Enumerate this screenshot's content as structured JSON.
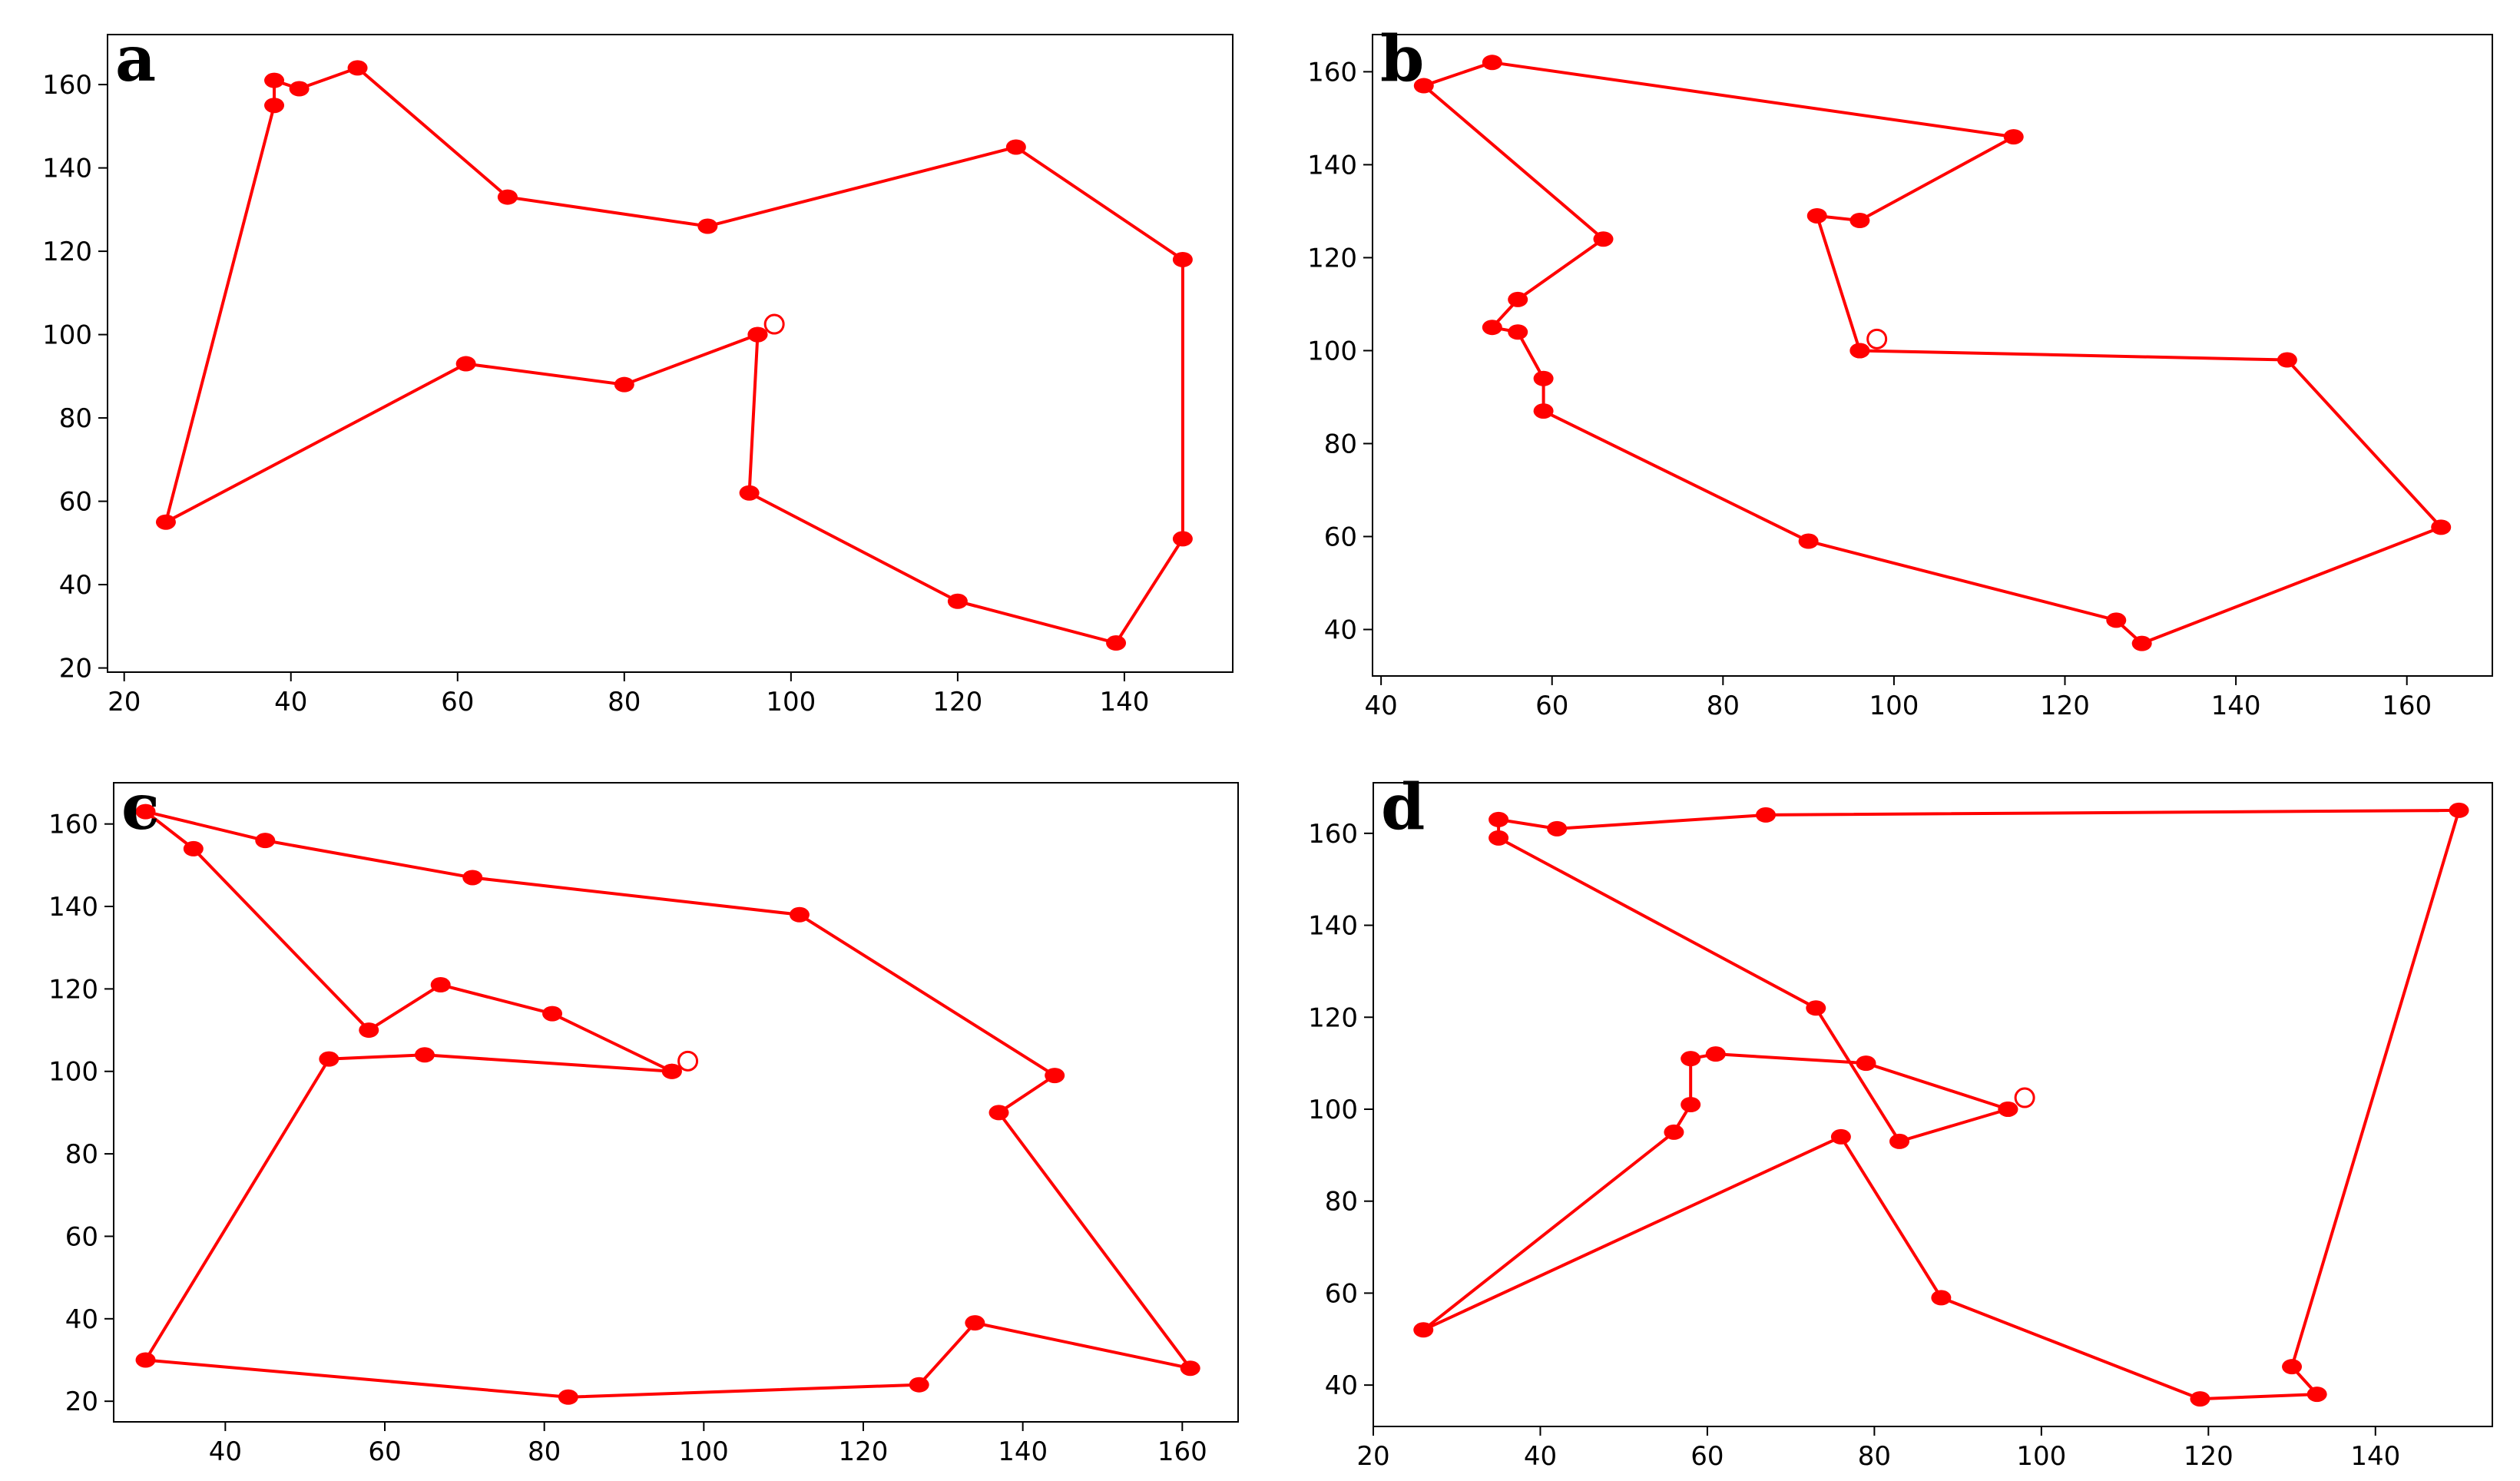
{
  "chart_data": [
    {
      "type": "line",
      "panel_label": "a",
      "xlim": [
        18,
        153
      ],
      "ylim": [
        19,
        172
      ],
      "xticks": [
        20,
        40,
        60,
        80,
        100,
        120,
        140
      ],
      "yticks": [
        20,
        40,
        60,
        80,
        100,
        120,
        140,
        160
      ],
      "series": [
        {
          "color": "#ff0000",
          "x": [
            96,
            95,
            120,
            139,
            147,
            147,
            127,
            90,
            66,
            48,
            41,
            38,
            38,
            25,
            61,
            80,
            96
          ],
          "y": [
            100,
            62,
            36,
            26,
            51,
            118,
            145,
            126,
            133,
            164,
            159,
            161,
            155,
            55,
            93,
            88,
            100
          ]
        }
      ],
      "start_marker": {
        "x": 98,
        "y": 102.5,
        "style": "hollow circle"
      },
      "grid": false
    },
    {
      "type": "line",
      "panel_label": "b",
      "xlim": [
        39,
        170
      ],
      "ylim": [
        30,
        168
      ],
      "xticks": [
        40,
        60,
        80,
        100,
        120,
        140,
        160
      ],
      "yticks": [
        40,
        60,
        80,
        100,
        120,
        140,
        160
      ],
      "series": [
        {
          "color": "#ff0000",
          "x": [
            96,
            146,
            164,
            129,
            126,
            90,
            59,
            59,
            56,
            53,
            56,
            66,
            45,
            53,
            114,
            96,
            91,
            96
          ],
          "y": [
            100,
            98,
            62,
            37,
            42,
            59,
            87,
            94,
            104,
            105,
            111,
            124,
            157,
            162,
            146,
            128,
            129,
            100
          ]
        }
      ],
      "start_marker": {
        "x": 98,
        "y": 102.5,
        "style": "hollow circle"
      },
      "grid": false
    },
    {
      "type": "line",
      "panel_label": "c",
      "xlim": [
        26,
        167
      ],
      "ylim": [
        15,
        170
      ],
      "xticks": [
        40,
        60,
        80,
        100,
        120,
        140,
        160
      ],
      "yticks": [
        20,
        40,
        60,
        80,
        100,
        120,
        140,
        160
      ],
      "series": [
        {
          "color": "#ff0000",
          "x": [
            96,
            81,
            67,
            58,
            36,
            30,
            45,
            71,
            112,
            144,
            137,
            161,
            134,
            127,
            83,
            30,
            53,
            65,
            96
          ],
          "y": [
            100,
            114,
            121,
            110,
            154,
            163,
            156,
            147,
            138,
            99,
            90,
            28,
            39,
            24,
            21,
            30,
            103,
            104,
            100
          ]
        }
      ],
      "start_marker": {
        "x": 98,
        "y": 102.5,
        "style": "hollow circle"
      },
      "grid": false
    },
    {
      "type": "line",
      "panel_label": "d",
      "xlim": [
        20,
        154
      ],
      "ylim": [
        31,
        171
      ],
      "xticks": [
        20,
        40,
        60,
        80,
        100,
        120,
        140
      ],
      "yticks": [
        40,
        60,
        80,
        100,
        120,
        140,
        160
      ],
      "series": [
        {
          "color": "#ff0000",
          "x": [
            96,
            83,
            73,
            35,
            35,
            42,
            67,
            150,
            130,
            133,
            119,
            88,
            76,
            26,
            56,
            58,
            58,
            61,
            79,
            96
          ],
          "y": [
            100,
            93,
            122,
            159,
            163,
            161,
            164,
            165,
            44,
            38,
            37,
            59,
            94,
            52,
            95,
            101,
            111,
            112,
            110,
            100
          ]
        }
      ],
      "start_marker": {
        "x": 98,
        "y": 102.5,
        "style": "hollow circle"
      },
      "grid": false
    }
  ]
}
